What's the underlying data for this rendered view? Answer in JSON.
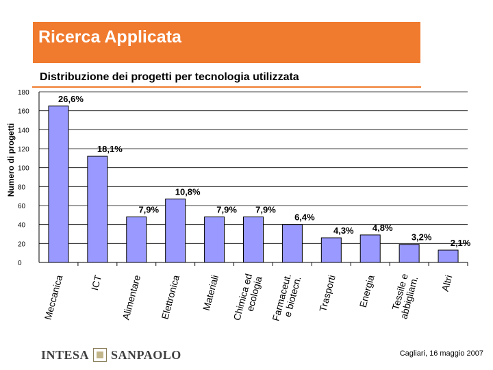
{
  "header": {
    "title": "Ricerca Applicata",
    "title_bar_color": "#f07a2d"
  },
  "footer": {
    "logo_text_left": "INTESA",
    "logo_text_right": "SANPAOLO",
    "date": "Cagliari, 16 maggio 2007"
  },
  "chart_data": {
    "type": "bar",
    "title": "Distribuzione dei progetti per tecnologia utilizzata",
    "ylabel": "Numero di progetti",
    "xlabel": "",
    "ylim": [
      0,
      180
    ],
    "yticks": [
      0,
      20,
      40,
      60,
      80,
      100,
      120,
      140,
      160,
      180
    ],
    "grid": true,
    "categories": [
      [
        "Meccanica"
      ],
      [
        "ICT"
      ],
      [
        "Alimentare"
      ],
      [
        "Elettronica"
      ],
      [
        "Materiali"
      ],
      [
        "Chimica ed",
        "ecologia"
      ],
      [
        "Farmaceut.",
        "e biotecn."
      ],
      [
        "Trasporti"
      ],
      [
        "Energia"
      ],
      [
        "Tessile e",
        "abbigliam."
      ],
      [
        "Altri"
      ]
    ],
    "values": [
      165,
      112,
      48,
      67,
      48,
      48,
      40,
      26,
      29,
      19,
      13
    ],
    "data_labels": [
      "26,6%",
      "18,1%",
      "7,9%",
      "10,8%",
      "7,9%",
      "7,9%",
      "6,4%",
      "4,3%",
      "4,8%",
      "3,2%",
      "2,1%"
    ],
    "bar_color": "#9999ff",
    "grid_color": "#000000"
  }
}
